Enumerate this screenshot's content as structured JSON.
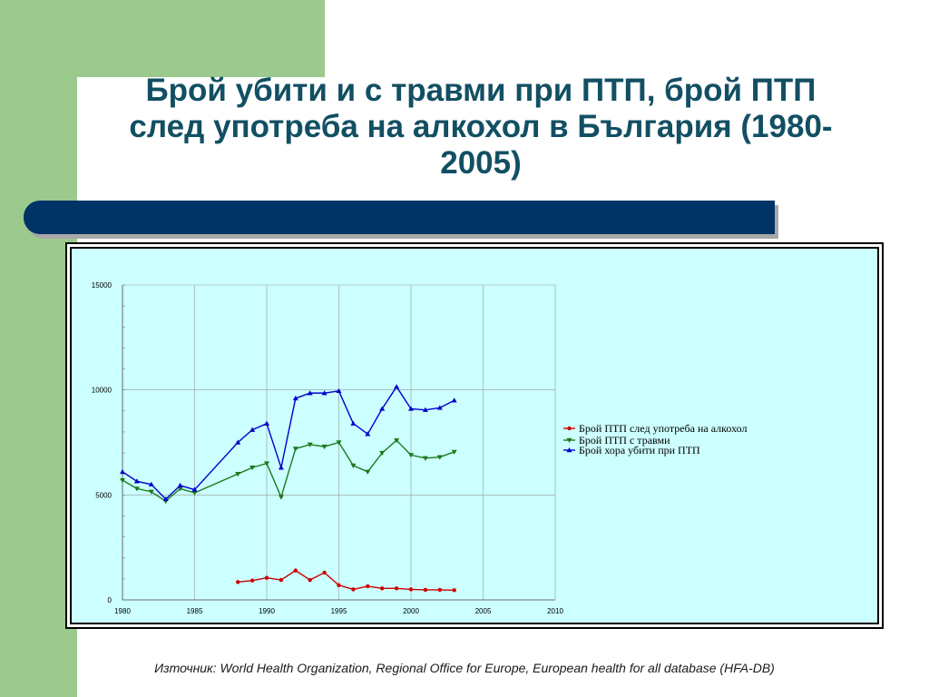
{
  "slide": {
    "title_line1": "Брой убити и с травми при ПТП, брой ПТП",
    "title_line2": "след употреба на алкохол в България (1980-",
    "title_line3": "2005)",
    "source": "Източник: World Health Organization, Regional Office for Europe, European health for all database (HFA-DB)"
  },
  "colors": {
    "accent_green": "#9cc98d",
    "bar_navy": "#003366",
    "title": "#124f63",
    "plot_bg": "#ccffff"
  },
  "chart_data": {
    "type": "line",
    "title": "",
    "xlabel": "",
    "ylabel": "",
    "xlim": [
      1980,
      2010
    ],
    "ylim": [
      0,
      15000
    ],
    "x_ticks": [
      "1980",
      "1985",
      "1990",
      "1995",
      "2000",
      "2005",
      "2010"
    ],
    "y_ticks": [
      "0",
      "5000",
      "10000",
      "15000"
    ],
    "grid": true,
    "legend_position": "right",
    "series": [
      {
        "name": "Брой ПТП след употреба на алкохол",
        "color": "#cc0000",
        "marker": "circle",
        "points": [
          [
            1988,
            850
          ],
          [
            1989,
            920
          ],
          [
            1990,
            1050
          ],
          [
            1991,
            950
          ],
          [
            1992,
            1400
          ],
          [
            1993,
            950
          ],
          [
            1994,
            1300
          ],
          [
            1995,
            700
          ],
          [
            1996,
            500
          ],
          [
            1997,
            650
          ],
          [
            1998,
            550
          ],
          [
            1999,
            550
          ],
          [
            2000,
            500
          ],
          [
            2001,
            480
          ],
          [
            2002,
            480
          ],
          [
            2003,
            460
          ]
        ]
      },
      {
        "name": "Брой ПТП с травми",
        "color": "#1a7a1a",
        "marker": "triangle-down",
        "points": [
          [
            1980,
            5700
          ],
          [
            1981,
            5300
          ],
          [
            1982,
            5150
          ],
          [
            1983,
            4700
          ],
          [
            1984,
            5300
          ],
          [
            1985,
            5100
          ],
          [
            1988,
            6000
          ],
          [
            1989,
            6300
          ],
          [
            1990,
            6500
          ],
          [
            1991,
            4900
          ],
          [
            1992,
            7200
          ],
          [
            1993,
            7400
          ],
          [
            1994,
            7300
          ],
          [
            1995,
            7500
          ],
          [
            1996,
            6400
          ],
          [
            1997,
            6100
          ],
          [
            1998,
            7000
          ],
          [
            1999,
            7600
          ],
          [
            2000,
            6900
          ],
          [
            2001,
            6750
          ],
          [
            2002,
            6800
          ],
          [
            2003,
            7050
          ]
        ]
      },
      {
        "name": "Брой хора  убити при ПТП",
        "color": "#0000cc",
        "marker": "triangle-up",
        "points": [
          [
            1980,
            6100
          ],
          [
            1981,
            5650
          ],
          [
            1982,
            5500
          ],
          [
            1983,
            4800
          ],
          [
            1984,
            5450
          ],
          [
            1985,
            5250
          ],
          [
            1988,
            7500
          ],
          [
            1989,
            8100
          ],
          [
            1990,
            8400
          ],
          [
            1991,
            6300
          ],
          [
            1992,
            9600
          ],
          [
            1993,
            9850
          ],
          [
            1994,
            9850
          ],
          [
            1995,
            9950
          ],
          [
            1996,
            8400
          ],
          [
            1997,
            7900
          ],
          [
            1998,
            9100
          ],
          [
            1999,
            10150
          ],
          [
            2000,
            9100
          ],
          [
            2001,
            9050
          ],
          [
            2002,
            9150
          ],
          [
            2003,
            9500
          ]
        ]
      }
    ]
  }
}
